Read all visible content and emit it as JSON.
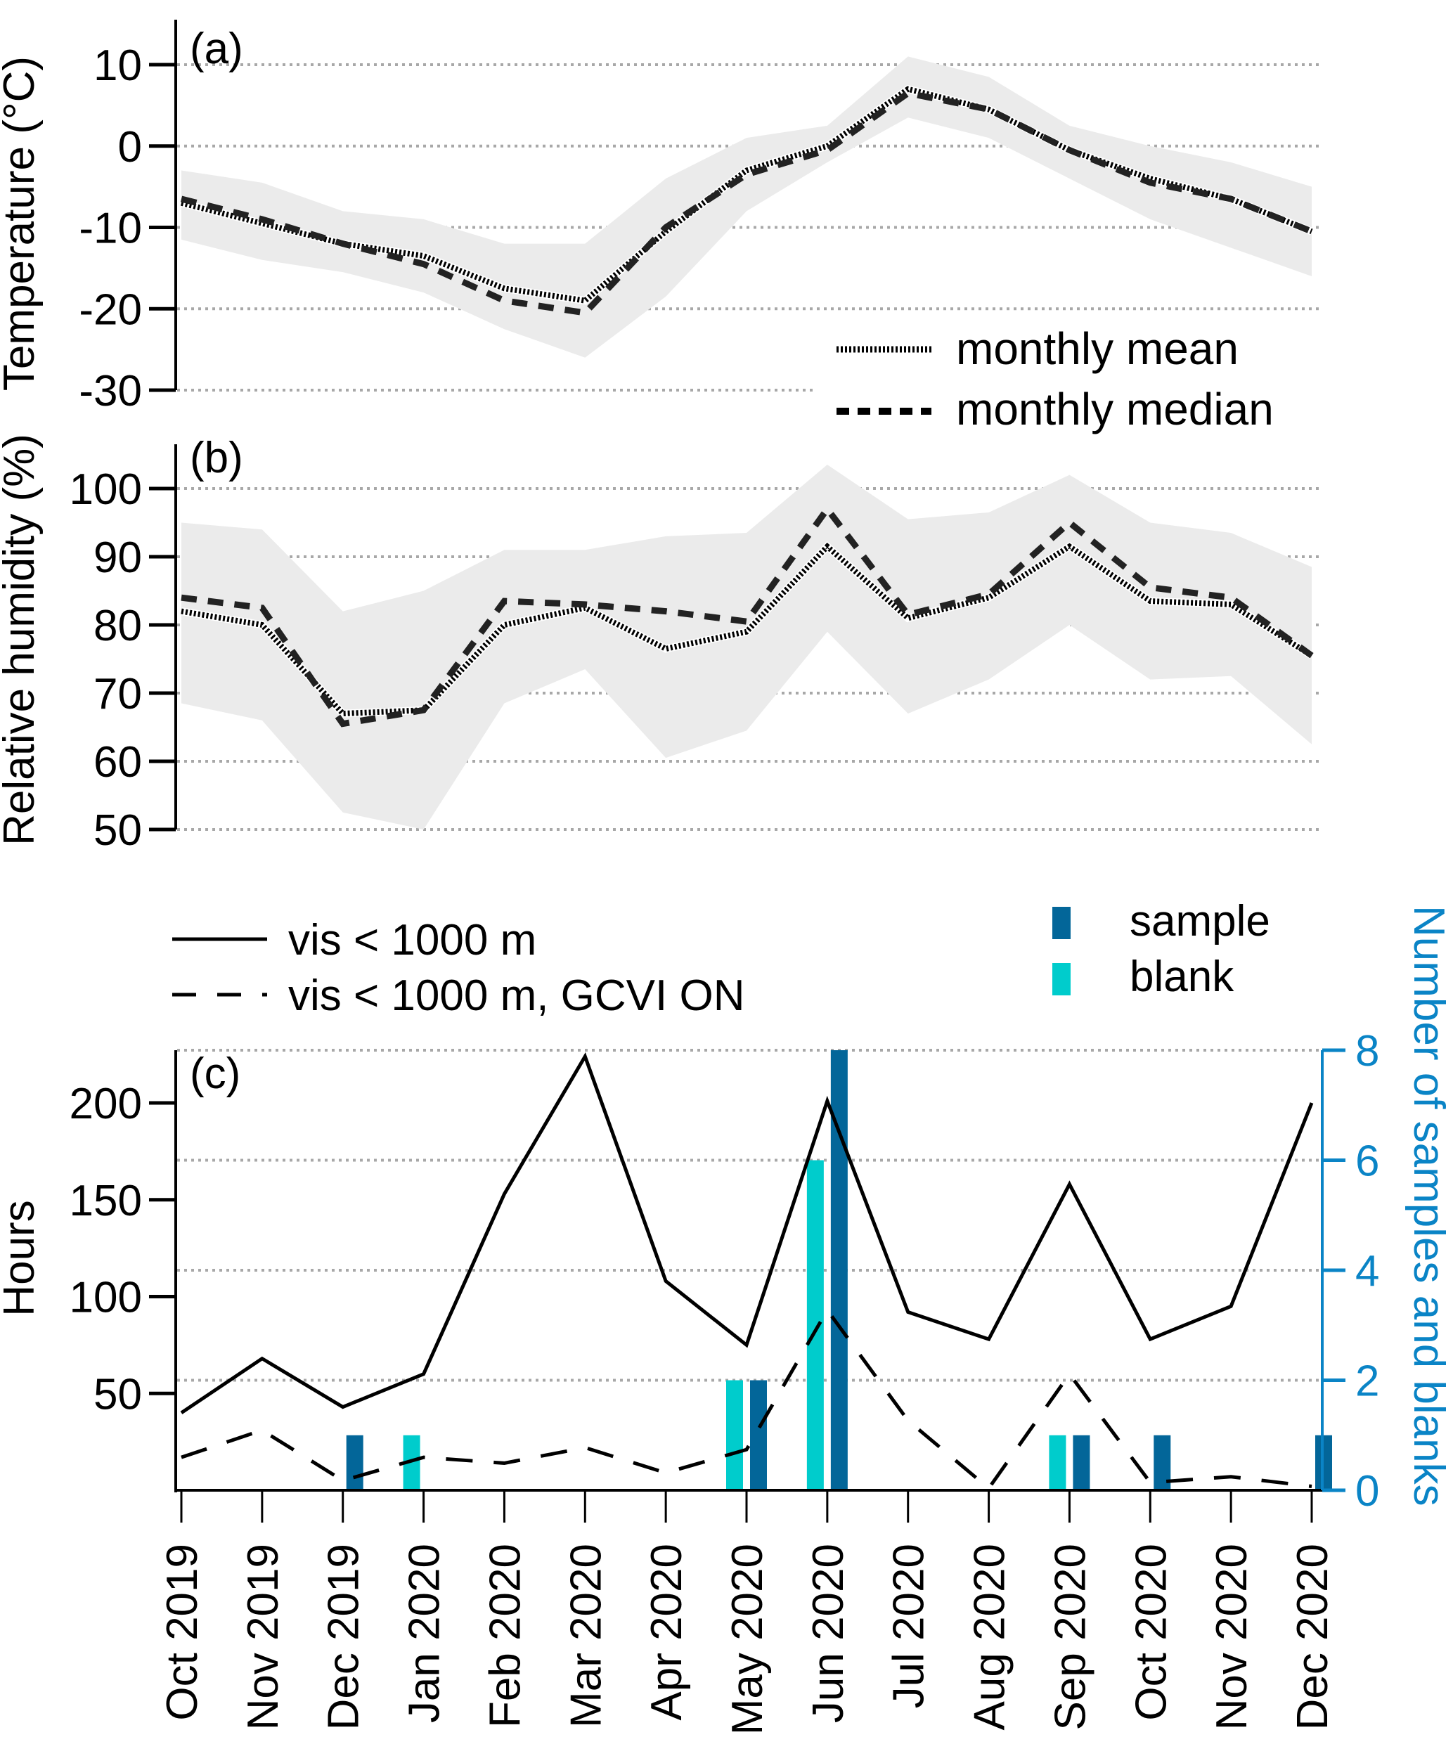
{
  "chart_data": [
    {
      "type": "line",
      "panel_label": "(a)",
      "ylabel": "Temperature (°C)",
      "ylim": [
        -30,
        12
      ],
      "yticks": [
        10,
        0,
        -10,
        -20,
        -30
      ],
      "grid": true,
      "x": [
        "Oct 2019",
        "Nov 2019",
        "Dec 2019",
        "Jan 2020",
        "Feb 2020",
        "Mar 2020",
        "Apr 2020",
        "May 2020",
        "Jun 2020",
        "Jul 2020",
        "Aug 2020",
        "Sep 2020",
        "Oct 2020",
        "Nov 2020",
        "Dec 2020"
      ],
      "series": [
        {
          "name": "monthly mean",
          "style": "dotted",
          "values": [
            -7,
            -9.5,
            -12,
            -13.5,
            -17.5,
            -19,
            -10.5,
            -3,
            0,
            7,
            4.5,
            -0.5,
            -4,
            -6.5,
            -10.5
          ]
        },
        {
          "name": "monthly median",
          "style": "dashed",
          "values": [
            -6.5,
            -9,
            -12,
            -14.5,
            -19,
            -20.5,
            -10,
            -3.5,
            -0.5,
            6.5,
            4.5,
            -0.5,
            -4.5,
            -6.5,
            -10.5
          ]
        }
      ],
      "band": {
        "upper": [
          -3,
          -4.5,
          -8,
          -9,
          -12,
          -12,
          -4,
          1,
          2.5,
          11,
          8.5,
          2.5,
          0,
          -2,
          -5
        ],
        "lower": [
          -11.5,
          -14,
          -15.5,
          -18,
          -22.5,
          -26,
          -18.5,
          -8,
          -2,
          3.5,
          1,
          -4,
          -9,
          -12.5,
          -16
        ]
      },
      "legend": [
        {
          "label": "monthly mean",
          "style": "dotted"
        },
        {
          "label": "monthly median",
          "style": "dashed"
        }
      ],
      "legend_position": "bottom-right"
    },
    {
      "type": "line",
      "panel_label": "(b)",
      "ylabel": "Relative humidity (%)",
      "ylim": [
        50,
        102
      ],
      "yticks": [
        100,
        90,
        80,
        70,
        60,
        50
      ],
      "grid": true,
      "series": [
        {
          "name": "monthly mean",
          "style": "dotted",
          "values": [
            82,
            80,
            67,
            67.5,
            80,
            82.5,
            76.5,
            79,
            91.5,
            81,
            84,
            91.5,
            83.5,
            83,
            75.5
          ]
        },
        {
          "name": "monthly median",
          "style": "dashed",
          "values": [
            84,
            82.5,
            65.5,
            67.5,
            83.5,
            83,
            82,
            80.5,
            97,
            81.5,
            84.5,
            95,
            85.5,
            84,
            75.5
          ]
        }
      ],
      "band": {
        "upper": [
          95,
          94,
          82,
          85,
          91,
          91,
          93,
          93.5,
          103.5,
          95.5,
          96.5,
          102,
          95,
          93.5,
          88.5
        ],
        "lower": [
          68.5,
          66,
          52.5,
          50,
          68.5,
          73.5,
          60.5,
          64.5,
          79,
          67,
          72,
          80,
          72,
          72.5,
          62.5
        ]
      }
    },
    {
      "type": "line",
      "panel_label": "(c)",
      "ylabel": "Hours",
      "y2label": "Number of samples and blanks",
      "ylim": [
        0,
        225
      ],
      "yticks": [
        50,
        100,
        150,
        200
      ],
      "y2lim": [
        0,
        8
      ],
      "y2ticks": [
        0,
        2,
        4,
        6,
        8
      ],
      "y2color": "#0a84c6",
      "grid": true,
      "series": [
        {
          "name": "vis < 1000 m",
          "style": "solid",
          "values": [
            40,
            68,
            43,
            60,
            153,
            224,
            108,
            75,
            201,
            92,
            78,
            158,
            78,
            95,
            200
          ]
        },
        {
          "name": "vis < 1000 m, GCVI ON",
          "style": "dashed",
          "values": [
            17,
            31,
            5,
            17,
            14,
            22,
            9,
            21,
            93,
            36,
            1,
            60,
            4,
            7,
            2
          ]
        }
      ],
      "bars": [
        {
          "name": "sample",
          "color": "#036699",
          "values": [
            0,
            0,
            1,
            0,
            0,
            0,
            0,
            2,
            8,
            0,
            0,
            1,
            1,
            0,
            1
          ]
        },
        {
          "name": "blank",
          "color": "#00cccc",
          "values": [
            0,
            0,
            0,
            1,
            0,
            0,
            0,
            2,
            6,
            0,
            0,
            1,
            0,
            0,
            0
          ]
        }
      ],
      "legend_lines": [
        {
          "label": "vis < 1000 m",
          "style": "solid"
        },
        {
          "label": "vis < 1000 m, GCVI ON",
          "style": "dashed"
        }
      ],
      "legend_bars": [
        {
          "label": "sample",
          "color": "#036699"
        },
        {
          "label": "blank",
          "color": "#00cccc"
        }
      ],
      "legend_position": "top"
    }
  ]
}
